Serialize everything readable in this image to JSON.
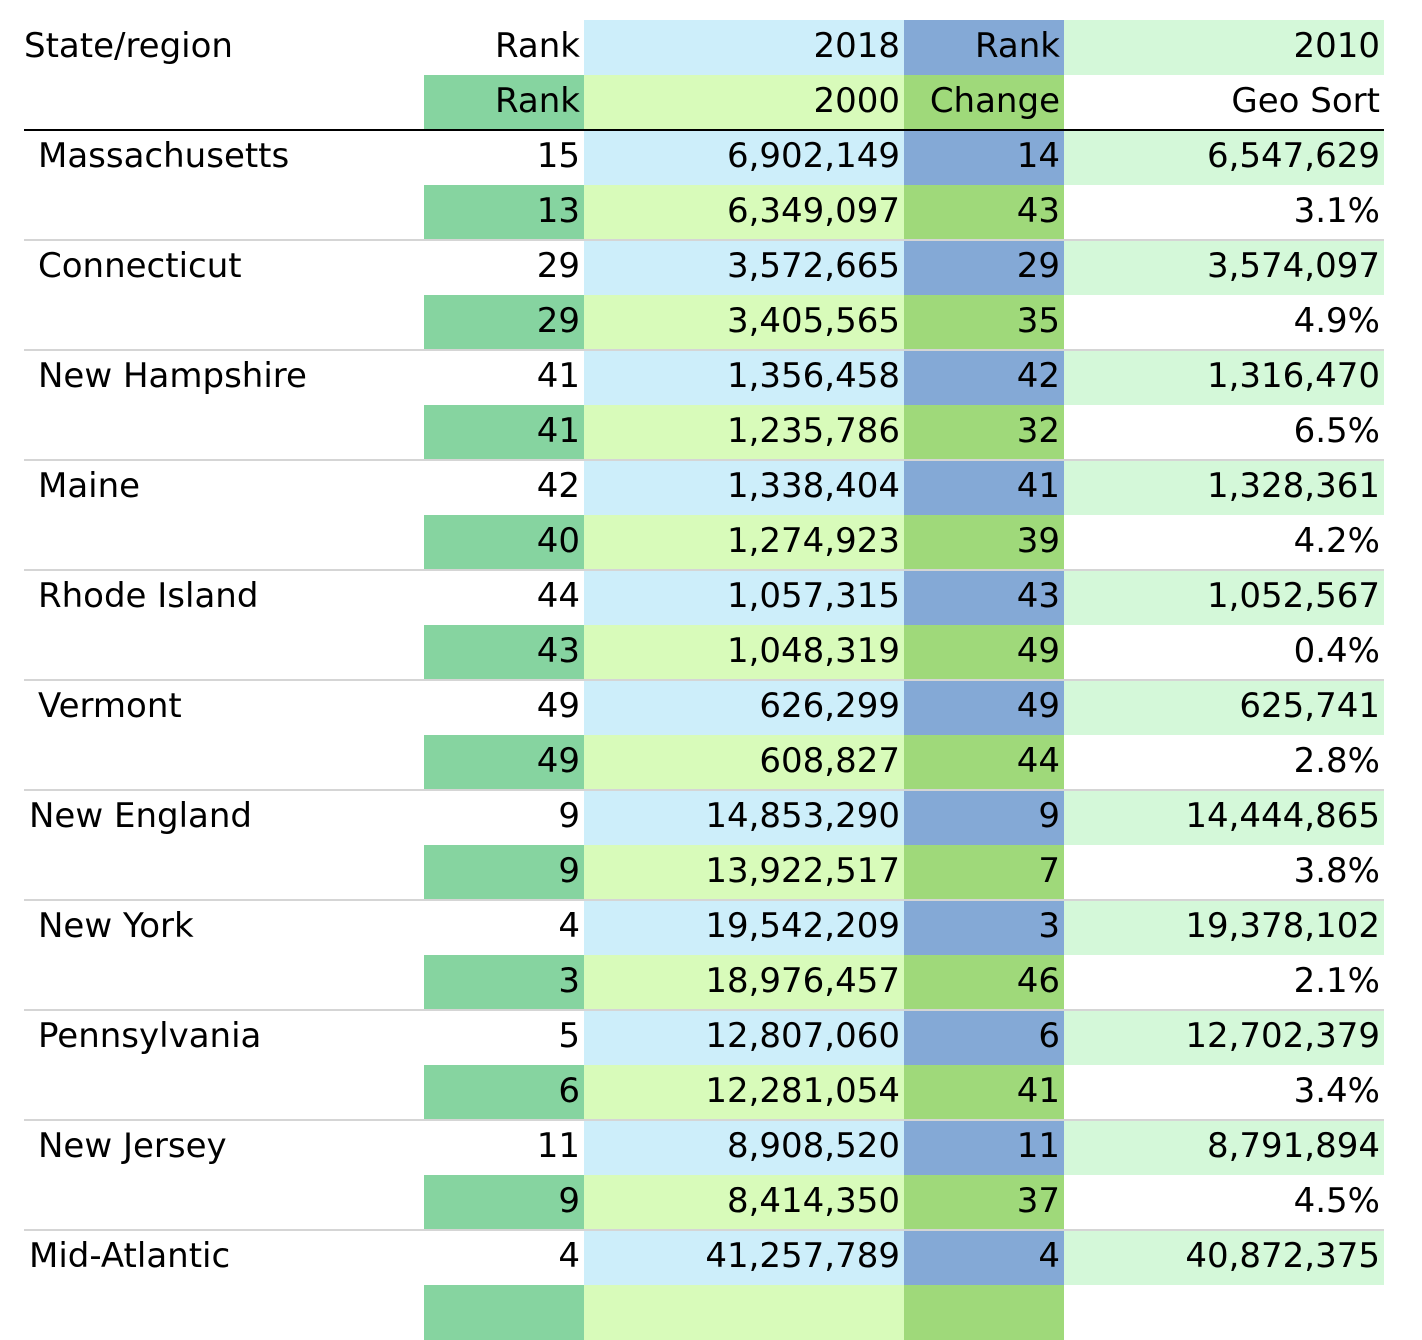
{
  "header": {
    "row1": [
      "State/region",
      "Rank",
      "2018",
      "Rank",
      "2010"
    ],
    "row2": [
      "",
      "Rank",
      "2000",
      "Change",
      "Geo Sort"
    ]
  },
  "rows": [
    {
      "name": "Massachusetts",
      "type": "state",
      "rank2018": "15",
      "pop2018": "6,902,149",
      "rank2010": "14",
      "pop2010": "6,547,629",
      "rank2000": "13",
      "pop2000": "6,349,097",
      "change_rank": "43",
      "change": "3.1%"
    },
    {
      "name": "Connecticut",
      "type": "state",
      "rank2018": "29",
      "pop2018": "3,572,665",
      "rank2010": "29",
      "pop2010": "3,574,097",
      "rank2000": "29",
      "pop2000": "3,405,565",
      "change_rank": "35",
      "change": "4.9%"
    },
    {
      "name": "New Hampshire",
      "type": "state",
      "rank2018": "41",
      "pop2018": "1,356,458",
      "rank2010": "42",
      "pop2010": "1,316,470",
      "rank2000": "41",
      "pop2000": "1,235,786",
      "change_rank": "32",
      "change": "6.5%"
    },
    {
      "name": "Maine",
      "type": "state",
      "rank2018": "42",
      "pop2018": "1,338,404",
      "rank2010": "41",
      "pop2010": "1,328,361",
      "rank2000": "40",
      "pop2000": "1,274,923",
      "change_rank": "39",
      "change": "4.2%"
    },
    {
      "name": "Rhode Island",
      "type": "state",
      "rank2018": "44",
      "pop2018": "1,057,315",
      "rank2010": "43",
      "pop2010": "1,052,567",
      "rank2000": "43",
      "pop2000": "1,048,319",
      "change_rank": "49",
      "change": "0.4%"
    },
    {
      "name": "Vermont",
      "type": "state",
      "rank2018": "49",
      "pop2018": "626,299",
      "rank2010": "49",
      "pop2010": "625,741",
      "rank2000": "49",
      "pop2000": "608,827",
      "change_rank": "44",
      "change": "2.8%"
    },
    {
      "name": "New England",
      "type": "region",
      "rank2018": "9",
      "pop2018": "14,853,290",
      "rank2010": "9",
      "pop2010": "14,444,865",
      "rank2000": "9",
      "pop2000": "13,922,517",
      "change_rank": "7",
      "change": "3.8%"
    },
    {
      "name": "New York",
      "type": "state",
      "rank2018": "4",
      "pop2018": "19,542,209",
      "rank2010": "3",
      "pop2010": "19,378,102",
      "rank2000": "3",
      "pop2000": "18,976,457",
      "change_rank": "46",
      "change": "2.1%"
    },
    {
      "name": "Pennsylvania",
      "type": "state",
      "rank2018": "5",
      "pop2018": "12,807,060",
      "rank2010": "6",
      "pop2010": "12,702,379",
      "rank2000": "6",
      "pop2000": "12,281,054",
      "change_rank": "41",
      "change": "3.4%"
    },
    {
      "name": "New Jersey",
      "type": "state",
      "rank2018": "11",
      "pop2018": "8,908,520",
      "rank2010": "11",
      "pop2010": "8,791,894",
      "rank2000": "9",
      "pop2000": "8,414,350",
      "change_rank": "37",
      "change": "4.5%"
    },
    {
      "name": "Mid-Atlantic",
      "type": "region",
      "rank2018": "4",
      "pop2018": "41,257,789",
      "rank2010": "4",
      "pop2010": "40,872,375",
      "rank2000": "",
      "pop2000": "",
      "change_rank": "",
      "change": ""
    }
  ]
}
